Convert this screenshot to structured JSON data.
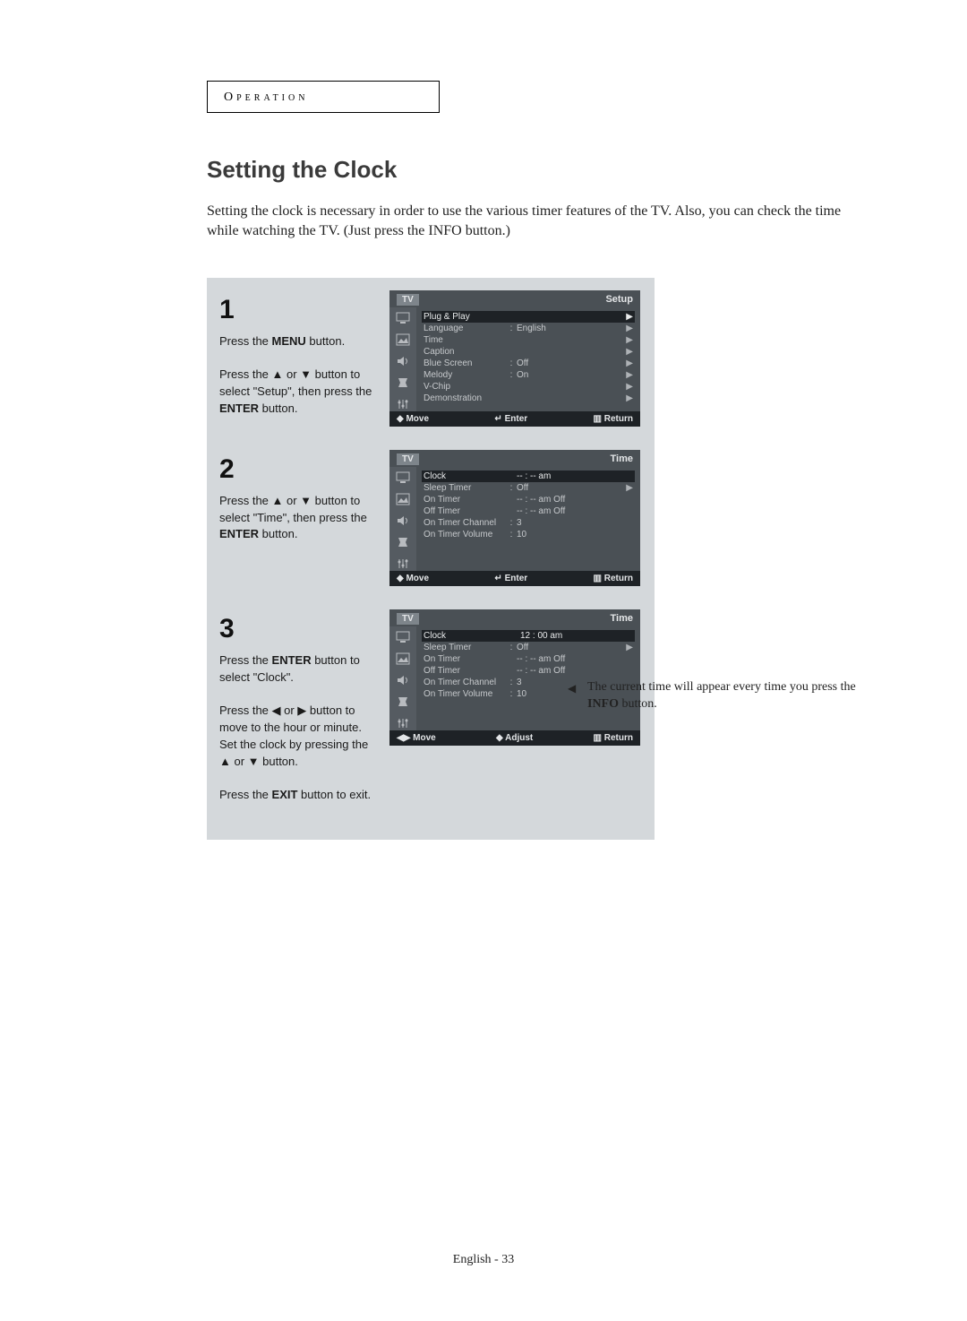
{
  "header_tab": "Operation",
  "title": "Setting the Clock",
  "intro": "Setting the clock is necessary in order to use the various timer features of the TV. Also, you can check the time while watching the TV. (Just press the INFO button.)",
  "side_note_prefix": "The current time will appear every time you press the ",
  "side_note_bold": "INFO",
  "side_note_suffix": " button.",
  "page_label": "English - 33",
  "colors": {
    "page_bg": "#ffffff",
    "step_area_bg": "#d4d8db",
    "tv_bg": "#4a5055",
    "tv_icons_bg": "#555b61",
    "tv_footer_bg": "#1e2226",
    "tv_selected_bg": "#1e2226",
    "tv_text": "#c6c9cc",
    "tv_light": "#e4e6e8",
    "title_color": "#3a3a3a"
  },
  "typography": {
    "title_fontsize": 26,
    "body_fontsize": 16,
    "step_fontsize": 13,
    "tv_fontsize": 10,
    "page_label_fontsize": 14
  },
  "steps": [
    {
      "num": "1",
      "lines_html": "Press the <b>MENU</b> button.<br><br>Press the ▲ or ▼ button to select \"Setup\", then press the <b>ENTER</b> button.",
      "tv": {
        "title": "Setup",
        "footer": [
          "◆ Move",
          "↵ Enter",
          "▥ Return"
        ],
        "rows": [
          {
            "label": "Plug & Play",
            "sep": "",
            "val": "",
            "arrow": "▶",
            "selected": true
          },
          {
            "label": "Language",
            "sep": ":",
            "val": "English",
            "arrow": "▶"
          },
          {
            "label": "Time",
            "sep": "",
            "val": "",
            "arrow": "▶"
          },
          {
            "label": "Caption",
            "sep": "",
            "val": "",
            "arrow": "▶"
          },
          {
            "label": "Blue Screen",
            "sep": ":",
            "val": "Off",
            "arrow": "▶"
          },
          {
            "label": "Melody",
            "sep": ":",
            "val": "On",
            "arrow": "▶"
          },
          {
            "label": "V-Chip",
            "sep": "",
            "val": "",
            "arrow": "▶"
          },
          {
            "label": "Demonstration",
            "sep": "",
            "val": "",
            "arrow": "▶"
          }
        ]
      }
    },
    {
      "num": "2",
      "lines_html": "Press the ▲ or ▼ button to select \"Time\", then press the <b>ENTER</b> button.",
      "tv": {
        "title": "Time",
        "footer": [
          "◆ Move",
          "↵ Enter",
          "▥ Return"
        ],
        "rows": [
          {
            "label": "Clock",
            "sep": "",
            "val": "-- : -- am",
            "arrow": "",
            "selected": true
          },
          {
            "label": "Sleep Timer",
            "sep": ":",
            "val": "Off",
            "arrow": "▶"
          },
          {
            "label": "On Timer",
            "sep": "",
            "val": "-- : -- am  Off",
            "arrow": ""
          },
          {
            "label": "Off Timer",
            "sep": "",
            "val": "-- : -- am  Off",
            "arrow": ""
          },
          {
            "label": "On Timer Channel",
            "sep": ":",
            "val": "3",
            "arrow": ""
          },
          {
            "label": "On Timer Volume",
            "sep": ":",
            "val": "10",
            "arrow": ""
          }
        ]
      }
    },
    {
      "num": "3",
      "lines_html": "Press the <b>ENTER</b> button to select \"Clock\".<br><br>Press the ◀ or ▶ button to move to the hour or minute. Set the clock by pressing the ▲ or ▼ button.<br><br>Press the <b>EXIT</b> button to exit.",
      "tv": {
        "title": "Time",
        "footer": [
          "◀▶ Move",
          "◆ Adjust",
          "▥ Return"
        ],
        "rows": [
          {
            "label": "Clock",
            "sep": "",
            "val_hl": "12 : 00 am",
            "arrow": "",
            "selected": true
          },
          {
            "label": "Sleep Timer",
            "sep": ":",
            "val": "Off",
            "arrow": "▶"
          },
          {
            "label": "On Timer",
            "sep": "",
            "val": "-- : -- am  Off",
            "arrow": ""
          },
          {
            "label": "Off Timer",
            "sep": "",
            "val": "-- : -- am  Off",
            "arrow": ""
          },
          {
            "label": "On Timer Channel",
            "sep": ":",
            "val": "3",
            "arrow": ""
          },
          {
            "label": "On Timer Volume",
            "sep": ":",
            "val": "10",
            "arrow": ""
          }
        ]
      }
    }
  ],
  "tv_common": {
    "badge": "TV",
    "icons": [
      "monitor-icon",
      "picture-icon",
      "sound-icon",
      "setup-icon",
      "sliders-icon"
    ]
  }
}
